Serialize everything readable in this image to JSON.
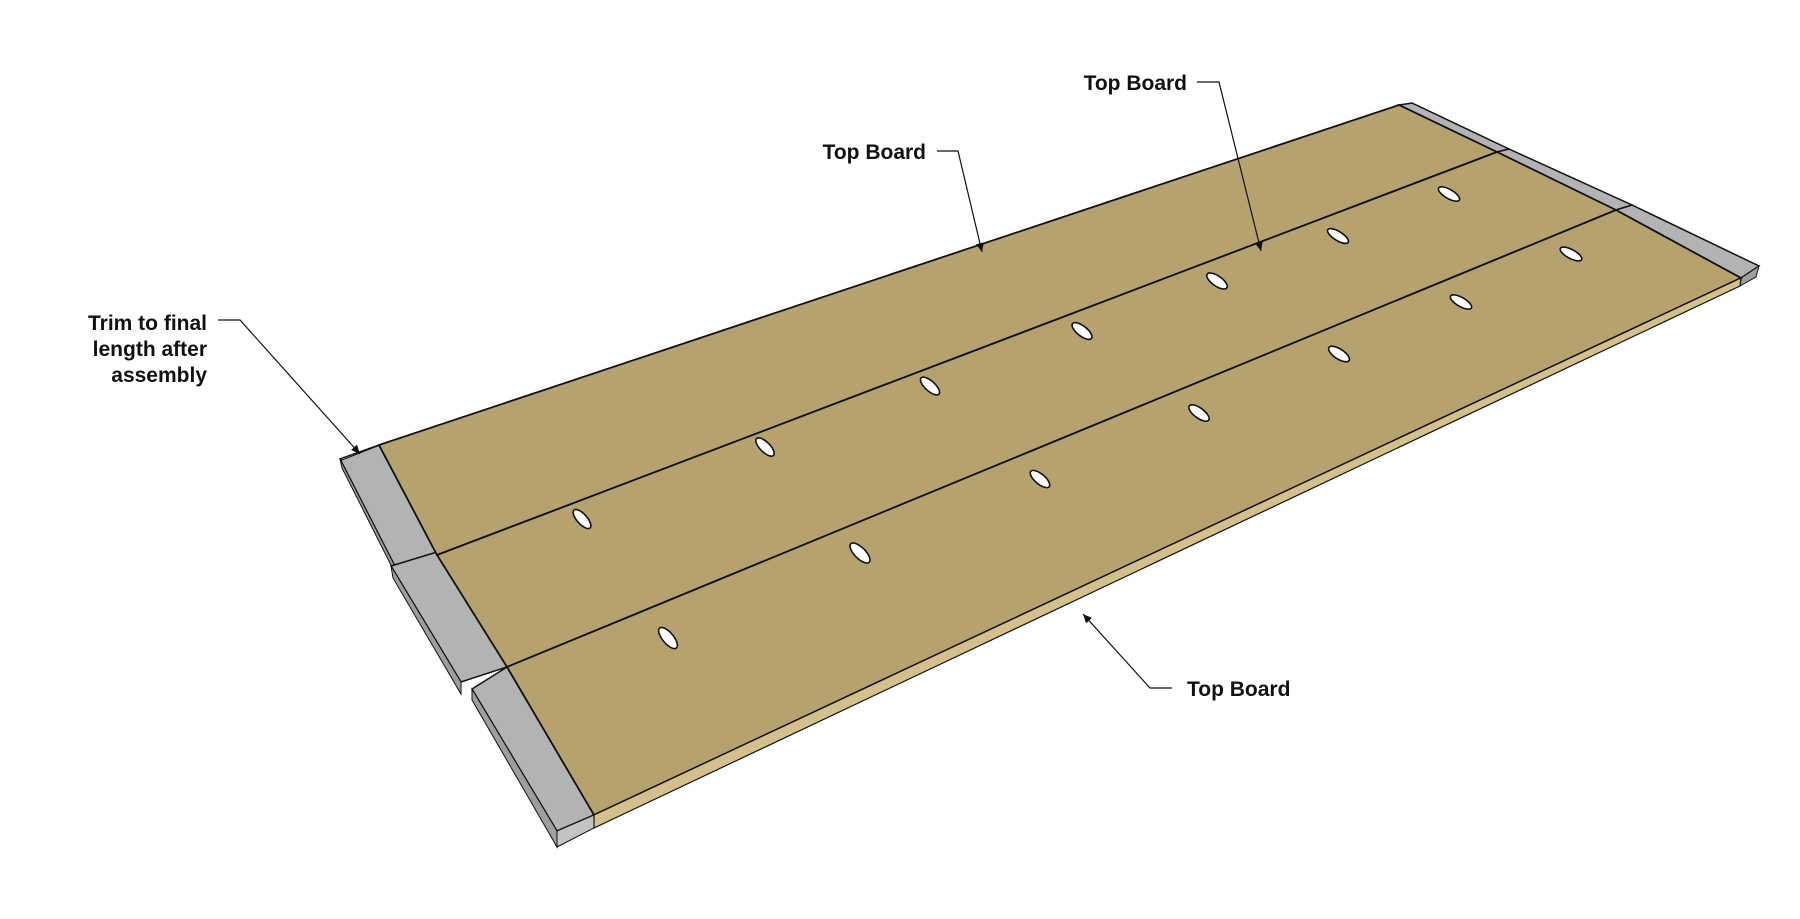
{
  "colors": {
    "board_top": "#b6a26f",
    "board_edge": "#d4c08c",
    "trim_stock": "#b3b3b3",
    "trim_stock_side": "#c4c4c4",
    "outline": "#111111",
    "pocket_hole": "#ffffff"
  },
  "labels": {
    "trim_line1": "Trim to final",
    "trim_line2": "length after",
    "trim_line3": "assembly",
    "top_board_back": "Top Board",
    "top_board_middle": "Top Board",
    "top_board_front": "Top Board"
  },
  "icons": {
    "pocket_holes": "pocket-hole-icon",
    "leader_arrows": "arrow-head-icon"
  }
}
